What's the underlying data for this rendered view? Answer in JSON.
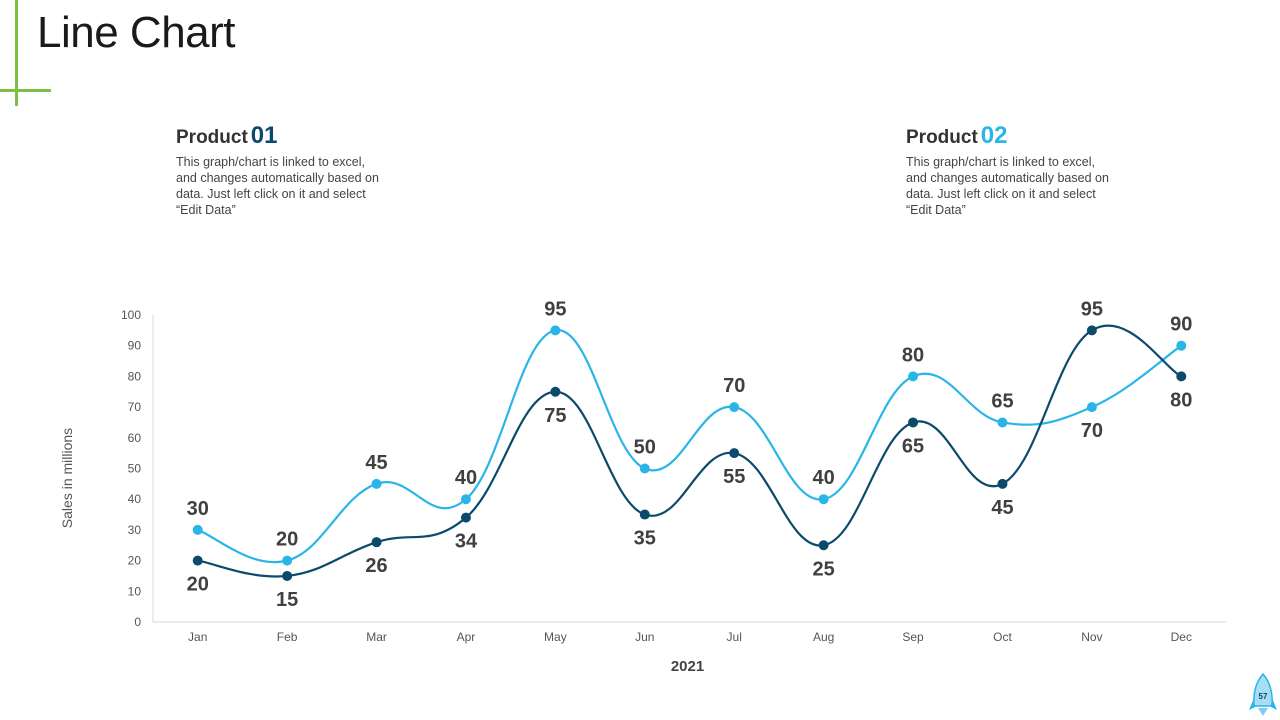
{
  "slide": {
    "title": "Line Chart",
    "page_number": "57"
  },
  "products": [
    {
      "name": "Product",
      "number": "01",
      "description": "This graph/chart is linked to excel, and changes automatically based on data. Just left click on it and select “Edit Data”"
    },
    {
      "name": "Product",
      "number": "02",
      "description": "This graph/chart is linked to excel, and changes automatically based on data. Just left click on it and select “Edit Data”"
    }
  ],
  "colors": {
    "accent": "#7ac143",
    "series1": "#0b4a6b",
    "series2": "#29b5e8"
  },
  "chart_data": {
    "type": "line",
    "title": "",
    "xlabel": "2021",
    "ylabel": "Sales in millions",
    "categories": [
      "Jan",
      "Feb",
      "Mar",
      "Apr",
      "May",
      "Jun",
      "Jul",
      "Aug",
      "Sep",
      "Oct",
      "Nov",
      "Dec"
    ],
    "ylim": [
      0,
      100
    ],
    "yticks": [
      0,
      10,
      20,
      30,
      40,
      50,
      60,
      70,
      80,
      90,
      100
    ],
    "grid": false,
    "smooth": true,
    "series": [
      {
        "name": "Product 01",
        "color": "#0b4a6b",
        "values": [
          20,
          15,
          26,
          34,
          75,
          35,
          55,
          25,
          65,
          45,
          95,
          80
        ]
      },
      {
        "name": "Product 02",
        "color": "#29b5e8",
        "values": [
          30,
          20,
          45,
          40,
          95,
          50,
          70,
          40,
          80,
          65,
          70,
          90
        ]
      }
    ]
  }
}
